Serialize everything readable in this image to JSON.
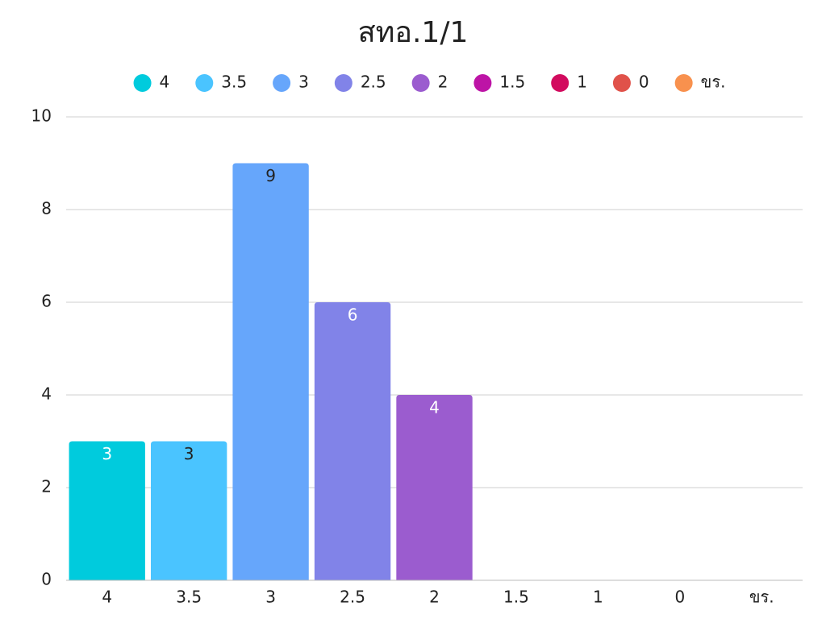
{
  "chart_data": {
    "type": "bar",
    "title": "สทอ.1/1",
    "categories": [
      "4",
      "3.5",
      "3",
      "2.5",
      "2",
      "1.5",
      "1",
      "0",
      "ขร."
    ],
    "values": [
      3,
      3,
      9,
      6,
      4,
      0,
      0,
      0,
      0
    ],
    "colors": [
      "#00cbdd",
      "#4ac4ff",
      "#66a6fb",
      "#8183e8",
      "#9b5ccf",
      "#bd14a6",
      "#d20b5e",
      "#e0524a",
      "#f8914e"
    ],
    "ylim": [
      0,
      10
    ],
    "yticks": [
      0,
      2,
      4,
      6,
      8,
      10
    ],
    "grid": true,
    "legend": "top"
  }
}
